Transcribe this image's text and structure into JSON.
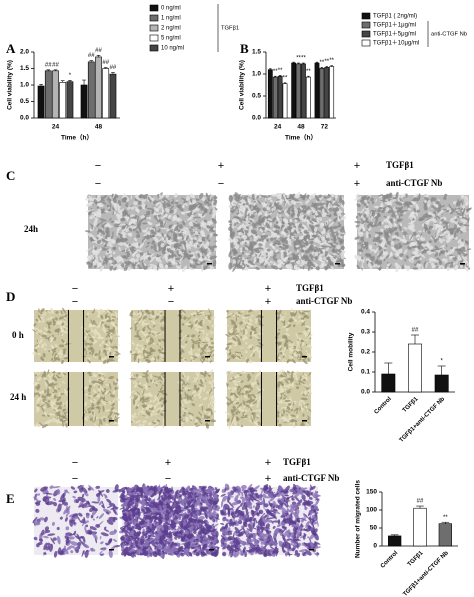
{
  "chart_data": [
    {
      "type": "bar",
      "categories": [
        "24",
        "48"
      ],
      "xlabel": "Time（h）",
      "ylabel": "Cell viability (%)",
      "ylim": [
        0,
        2
      ],
      "yticks": [
        {
          "value": 0,
          "label": "0.0"
        },
        0.5,
        {
          "value": 1,
          "label": "1.0"
        },
        1.5,
        {
          "value": 2,
          "label": "2.0"
        }
      ],
      "legend_group": "TGFβ1",
      "series": [
        {
          "name": "0 ng/ml",
          "color": "#111111",
          "values": [
            0.97,
            1.0
          ],
          "errors": [
            0.05,
            0.15
          ],
          "annotations": [
            null,
            null
          ]
        },
        {
          "name": "1 ng/ml",
          "color": "#6e6e6e",
          "values": [
            1.43,
            1.7
          ],
          "errors": [
            0.03,
            0.04
          ],
          "annotations": [
            "##",
            "##"
          ]
        },
        {
          "name": "2 ng/ml",
          "color": "#b4b4b4",
          "values": [
            1.43,
            1.85
          ],
          "errors": [
            0.03,
            0.05
          ],
          "annotations": [
            "##",
            "##"
          ]
        },
        {
          "name": "5 ng/ml",
          "color": "#ffffff",
          "values": [
            1.08,
            1.5
          ],
          "errors": [
            0.05,
            0.03
          ],
          "annotations": [
            null,
            "##"
          ]
        },
        {
          "name": "10 ng/ml",
          "color": "#454545",
          "values": [
            1.1,
            1.33
          ],
          "errors": [
            0.04,
            0.05
          ],
          "annotations": [
            "*",
            "##"
          ]
        }
      ]
    },
    {
      "type": "bar",
      "categories": [
        "24",
        "48",
        "72"
      ],
      "xlabel": "Time（h）",
      "ylabel": "Cell viability (%)",
      "ylim": [
        0,
        1.5
      ],
      "yticks": [
        {
          "value": 0,
          "label": "0.0"
        },
        0.5,
        {
          "value": 1,
          "label": "1.0"
        },
        1.5
      ],
      "legend_group": "anti-CTGF Nb",
      "series": [
        {
          "name": "TGFβ1 ( 2ng/ml)",
          "color": "#111111",
          "values": [
            1.1,
            1.25,
            1.25
          ],
          "errors": [
            0.02,
            0.02,
            0.02
          ],
          "annotations": [
            null,
            null,
            null
          ]
        },
        {
          "name": "TGFβ1＋1μg/ml",
          "color": "#6e6e6e",
          "values": [
            0.93,
            1.23,
            1.13
          ],
          "errors": [
            0.02,
            0.02,
            0.02
          ],
          "annotations": [
            "**",
            "**",
            "**"
          ]
        },
        {
          "name": "TGFβ1＋5μg/ml",
          "color": "#454545",
          "values": [
            0.95,
            1.23,
            1.15
          ],
          "errors": [
            0.02,
            0.02,
            0.02
          ],
          "annotations": [
            "**",
            "**",
            "**"
          ]
        },
        {
          "name": "TGFβ1＋10μg/ml",
          "color": "#ffffff",
          "values": [
            0.78,
            0.93,
            1.17
          ],
          "errors": [
            0.02,
            0.02,
            0.02
          ],
          "annotations": [
            "**",
            "**",
            "**"
          ]
        }
      ]
    },
    {
      "type": "bar",
      "categories": [
        "Control",
        "TGFβ1",
        "TGFβ1+anti-CTGF Nb"
      ],
      "ylabel": "Cell mobility",
      "ylim": [
        0,
        0.4
      ],
      "yticks": [
        {
          "value": 0,
          "label": "0.0"
        },
        0.1,
        0.2,
        0.3,
        0.4
      ],
      "values": [
        0.09,
        0.24,
        0.085
      ],
      "errors": [
        0.055,
        0.045,
        0.045
      ],
      "colors": [
        "#111111",
        "#ffffff",
        "#111111"
      ],
      "annotations": [
        null,
        "##",
        "*"
      ]
    },
    {
      "type": "bar",
      "categories": [
        "Control",
        "TGFβ1",
        "TGFβ1+anti-CTGF Nb"
      ],
      "ylabel": "Number of migrated cells",
      "ylim": [
        0,
        150
      ],
      "yticks": [
        0,
        50,
        100,
        150
      ],
      "values": [
        28,
        105,
        62
      ],
      "errors": [
        3,
        6,
        4
      ],
      "colors": [
        "#111111",
        "#ffffff",
        "#6e6e6e"
      ],
      "annotations": [
        null,
        "##",
        "**"
      ]
    }
  ],
  "panels": {
    "A": {
      "letter": "A"
    },
    "B": {
      "letter": "B"
    },
    "C": {
      "letter": "C",
      "tgf": "TGFβ1",
      "nb": "anti-CTGF Nb",
      "tgf_signs": [
        "−",
        "+",
        "+"
      ],
      "nb_signs": [
        "−",
        "−",
        "+"
      ],
      "times": [
        "24h"
      ]
    },
    "D": {
      "letter": "D",
      "tgf": "TGFβ1",
      "nb": "anti-CTGF Nb",
      "tgf_signs": [
        "−",
        "+",
        "+"
      ],
      "nb_signs": [
        "−",
        "−",
        "+"
      ],
      "times": [
        "0 h",
        "24 h"
      ]
    },
    "E": {
      "letter": "E",
      "tgf": "TGFβ1",
      "nb": "anti-CTGF Nb",
      "tgf_signs": [
        "−",
        "+",
        "+"
      ],
      "nb_signs": [
        "−",
        "−",
        "+"
      ]
    }
  }
}
